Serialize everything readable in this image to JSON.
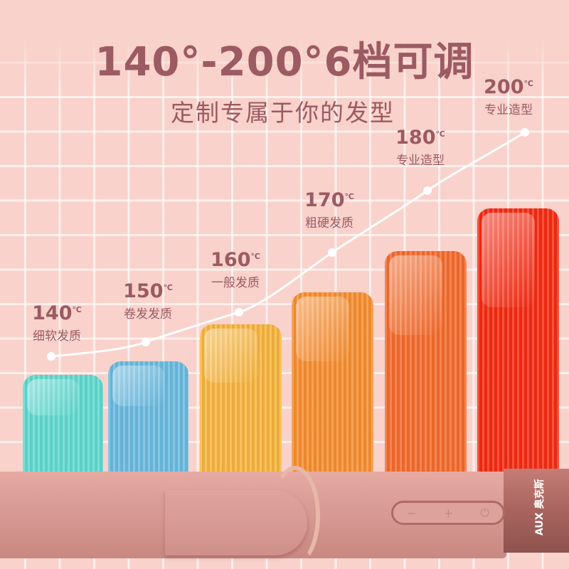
{
  "headline": "140°-200°6档可调",
  "subheadline": "定制专属于你的发型",
  "unit": "℃",
  "levels": [
    {
      "temp": "140",
      "desc": "细软发质",
      "color": "#5fd8cf"
    },
    {
      "temp": "150",
      "desc": "卷发发质",
      "color": "#6ab9de"
    },
    {
      "temp": "160",
      "desc": "一般发质",
      "color": "#f6b33d"
    },
    {
      "temp": "170",
      "desc": "粗硬发质",
      "color": "#f68d30"
    },
    {
      "temp": "180",
      "desc": "专业造型",
      "color": "#f36a2c"
    },
    {
      "temp": "200",
      "desc": "专业造型",
      "color": "#f42b12"
    }
  ],
  "device": {
    "brand": "AUX 奥克斯",
    "buttons": [
      "−",
      "+",
      "⏻"
    ]
  }
}
